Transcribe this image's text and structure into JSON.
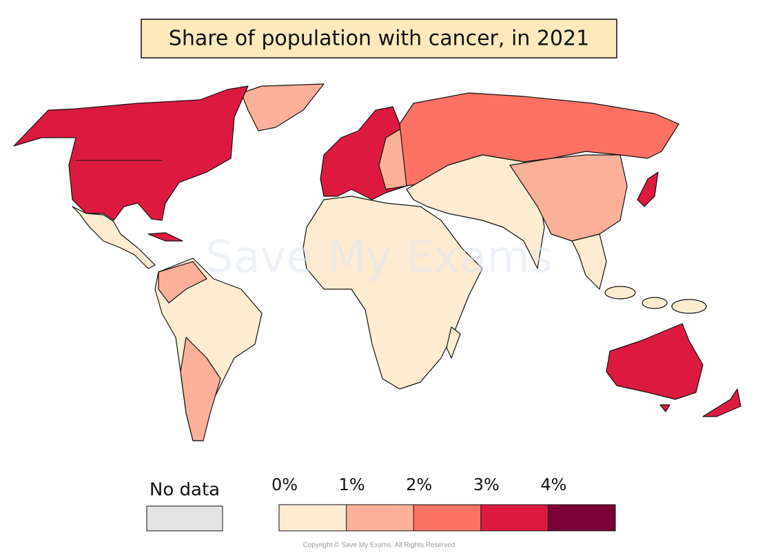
{
  "title": "Share of population with cancer, in 2021",
  "watermark": "Save My Exams",
  "legend": {
    "no_data_label": "No data",
    "no_data_color": "#e4e4e4",
    "colors": [
      "#fdecd2",
      "#fcb09a",
      "#fb7265",
      "#dc1a3f",
      "#7a0037"
    ],
    "ticks": [
      {
        "value": 0,
        "label": "0%"
      },
      {
        "value": 1,
        "label": "1%"
      },
      {
        "value": 2,
        "label": "2%"
      },
      {
        "value": 3,
        "label": "3%"
      },
      {
        "value": 4,
        "label": "4%"
      }
    ]
  },
  "footer": "Copyright © Save My Exams. All Rights Reserved"
}
